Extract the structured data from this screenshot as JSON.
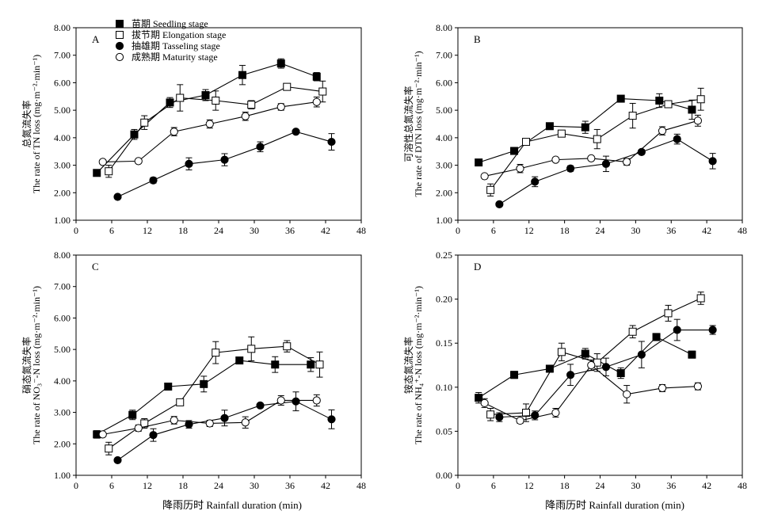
{
  "figure": {
    "xlabel": "降雨历时 Rainfall duration (min)"
  },
  "chart_data": [
    {
      "type": "line",
      "panel_label": "A",
      "ylabel_cn": "总氮流失率",
      "ylabel_en": "The rate of TN loss (mg·m⁻²·min⁻¹)",
      "xlim": [
        0,
        48
      ],
      "xticks": [
        0,
        6,
        12,
        18,
        24,
        30,
        36,
        42,
        48
      ],
      "ylim": [
        1.0,
        8.0
      ],
      "yticks": [
        "1.00",
        "2.00",
        "3.00",
        "4.00",
        "5.00",
        "6.00",
        "7.00",
        "8.00"
      ],
      "legend": true,
      "series": [
        {
          "name": "苗期 Seedling stage",
          "marker": "filled-square",
          "x": [
            3.5,
            9.8,
            15.8,
            21.8,
            28,
            34.5,
            40.5
          ],
          "y": [
            2.72,
            4.12,
            5.28,
            5.55,
            6.28,
            6.7,
            6.22
          ],
          "err": [
            0.06,
            0.18,
            0.18,
            0.2,
            0.35,
            0.17,
            0.15
          ]
        },
        {
          "name": "拔节期 Elongation stage",
          "marker": "open-square",
          "x": [
            5.5,
            11.5,
            17.5,
            23.5,
            29.5,
            35.5,
            41.5
          ],
          "y": [
            2.78,
            4.55,
            5.45,
            5.35,
            5.2,
            5.85,
            5.68
          ],
          "err": [
            0.22,
            0.25,
            0.48,
            0.35,
            0.15,
            0.1,
            0.38
          ]
        },
        {
          "name": "抽雄期 Tasseling stage",
          "marker": "filled-circle",
          "x": [
            7,
            13,
            19,
            25,
            31,
            37,
            43
          ],
          "y": [
            1.85,
            2.45,
            3.05,
            3.2,
            3.67,
            4.22,
            3.85
          ],
          "err": [
            0.07,
            0.1,
            0.22,
            0.22,
            0.18,
            0.05,
            0.3
          ]
        },
        {
          "name": "成熟期 Maturity stage",
          "marker": "open-circle",
          "x": [
            4.5,
            10.5,
            16.5,
            22.5,
            28.5,
            34.5,
            40.5
          ],
          "y": [
            3.12,
            3.15,
            4.22,
            4.5,
            4.78,
            5.12,
            5.3
          ],
          "err": [
            0.08,
            0.07,
            0.15,
            0.15,
            0.15,
            0.12,
            0.18
          ]
        }
      ]
    },
    {
      "type": "line",
      "panel_label": "B",
      "ylabel_cn": "可溶性总氮流失率",
      "ylabel_en": "The rate of DTN loss (mg·m⁻²·min⁻¹)",
      "xlim": [
        0,
        48
      ],
      "xticks": [
        0,
        6,
        12,
        18,
        24,
        30,
        36,
        42,
        48
      ],
      "ylim": [
        1.0,
        8.0
      ],
      "yticks": [
        "1.00",
        "2.00",
        "3.00",
        "4.00",
        "5.00",
        "6.00",
        "7.00",
        "8.00"
      ],
      "legend": false,
      "series": [
        {
          "name": "苗期 Seedling stage",
          "marker": "filled-square",
          "x": [
            3.5,
            9.5,
            15.5,
            21.5,
            27.5,
            34,
            39.5
          ],
          "y": [
            3.1,
            3.52,
            4.42,
            4.38,
            5.42,
            5.35,
            5.02
          ],
          "err": [
            0.05,
            0.12,
            0.07,
            0.22,
            0.1,
            0.25,
            0.35
          ]
        },
        {
          "name": "拔节期 Elongation stage",
          "marker": "open-square",
          "x": [
            5.5,
            11.5,
            17.5,
            23.5,
            29.5,
            35.5,
            41
          ],
          "y": [
            2.1,
            3.85,
            4.15,
            3.95,
            4.8,
            5.22,
            5.4
          ],
          "err": [
            0.22,
            0.08,
            0.1,
            0.35,
            0.45,
            0.1,
            0.4
          ]
        },
        {
          "name": "抽雄期 Tasseling stage",
          "marker": "filled-circle",
          "x": [
            7,
            13,
            19,
            25,
            31,
            37,
            43
          ],
          "y": [
            1.58,
            2.4,
            2.88,
            3.05,
            3.48,
            3.95,
            3.15
          ],
          "err": [
            0.04,
            0.18,
            0.1,
            0.28,
            0.08,
            0.18,
            0.28
          ]
        },
        {
          "name": "成熟期 Maturity stage",
          "marker": "open-circle",
          "x": [
            4.5,
            10.5,
            16.5,
            22.5,
            28.5,
            34.5,
            40.5
          ],
          "y": [
            2.6,
            2.88,
            3.2,
            3.25,
            3.12,
            4.25,
            4.62
          ],
          "err": [
            0.07,
            0.15,
            0.06,
            0.05,
            0.12,
            0.15,
            0.2
          ]
        }
      ]
    },
    {
      "type": "line",
      "panel_label": "C",
      "ylabel_cn": "硝态氮流失率",
      "ylabel_en": "The rate of NO₃⁻-N loss (mg·m⁻²·min⁻¹)",
      "xlim": [
        0,
        48
      ],
      "xticks": [
        0,
        6,
        12,
        18,
        24,
        30,
        36,
        42,
        48
      ],
      "ylim": [
        1.0,
        8.0
      ],
      "yticks": [
        "1.00",
        "2.00",
        "3.00",
        "4.00",
        "5.00",
        "6.00",
        "7.00",
        "8.00"
      ],
      "legend": false,
      "series": [
        {
          "name": "苗期 Seedling stage",
          "marker": "filled-square",
          "x": [
            3.5,
            9.5,
            15.5,
            21.5,
            27.5,
            33.5,
            39.5
          ],
          "y": [
            2.3,
            2.92,
            3.82,
            3.9,
            4.65,
            4.52,
            4.52
          ],
          "err": [
            0.12,
            0.15,
            0.05,
            0.25,
            0.1,
            0.25,
            0.22
          ]
        },
        {
          "name": "拔节期 Elongation stage",
          "marker": "open-square",
          "x": [
            5.5,
            11.5,
            17.5,
            23.5,
            29.5,
            35.5,
            41
          ],
          "y": [
            1.85,
            2.65,
            3.32,
            4.9,
            5.02,
            5.1,
            4.52
          ],
          "err": [
            0.2,
            0.15,
            0.08,
            0.35,
            0.38,
            0.18,
            0.4
          ]
        },
        {
          "name": "抽雄期 Tasseling stage",
          "marker": "filled-circle",
          "x": [
            7,
            13,
            19,
            25,
            31,
            37,
            43
          ],
          "y": [
            1.48,
            2.28,
            2.62,
            2.82,
            3.22,
            3.35,
            2.78
          ],
          "err": [
            0.04,
            0.2,
            0.12,
            0.25,
            0.05,
            0.3,
            0.3
          ]
        },
        {
          "name": "成熟期 Maturity stage",
          "marker": "open-circle",
          "x": [
            4.5,
            10.5,
            16.5,
            22.5,
            28.5,
            34.5,
            40.5
          ],
          "y": [
            2.3,
            2.5,
            2.75,
            2.65,
            2.68,
            3.38,
            3.38
          ],
          "err": [
            0.05,
            0.1,
            0.12,
            0.1,
            0.18,
            0.15,
            0.18
          ]
        }
      ]
    },
    {
      "type": "line",
      "panel_label": "D",
      "ylabel_cn": "铵态氮流失率",
      "ylabel_en": "The rate of NH₄⁺-N loss (mg·m⁻²·min⁻¹)",
      "xlim": [
        0,
        48
      ],
      "xticks": [
        0,
        6,
        12,
        18,
        24,
        30,
        36,
        42,
        48
      ],
      "ylim": [
        0.0,
        0.25
      ],
      "yticks": [
        "0.00",
        "0.05",
        "0.10",
        "0.15",
        "0.20",
        "0.25"
      ],
      "legend": false,
      "series": [
        {
          "name": "苗期 Seedling stage",
          "marker": "filled-square",
          "x": [
            3.5,
            9.5,
            15.5,
            21.5,
            27.5,
            33.5,
            39.5
          ],
          "y": [
            0.088,
            0.114,
            0.121,
            0.138,
            0.116,
            0.157,
            0.137
          ],
          "err": [
            0.006,
            0.004,
            0.004,
            0.006,
            0.006,
            0.004,
            0.004
          ]
        },
        {
          "name": "拔节期 Elongation stage",
          "marker": "open-square",
          "x": [
            5.5,
            11.5,
            17.5,
            23.5,
            29.5,
            35.5,
            41
          ],
          "y": [
            0.069,
            0.071,
            0.14,
            0.128,
            0.163,
            0.184,
            0.201
          ],
          "err": [
            0.007,
            0.01,
            0.01,
            0.01,
            0.007,
            0.009,
            0.007
          ]
        },
        {
          "name": "抽雄期 Tasseling stage",
          "marker": "filled-circle",
          "x": [
            7,
            13,
            19,
            25,
            31,
            37,
            43
          ],
          "y": [
            0.066,
            0.068,
            0.114,
            0.123,
            0.137,
            0.165,
            0.165
          ],
          "err": [
            0.005,
            0.005,
            0.012,
            0.01,
            0.015,
            0.012,
            0.005
          ]
        },
        {
          "name": "成熟期 Maturity stage",
          "marker": "open-circle",
          "x": [
            4.5,
            10.5,
            16.5,
            22.5,
            28.5,
            34.5,
            40.5
          ],
          "y": [
            0.082,
            0.062,
            0.071,
            0.125,
            0.092,
            0.099,
            0.101
          ],
          "err": [
            0.005,
            0.003,
            0.005,
            0.006,
            0.01,
            0.004,
            0.004
          ]
        }
      ]
    }
  ]
}
